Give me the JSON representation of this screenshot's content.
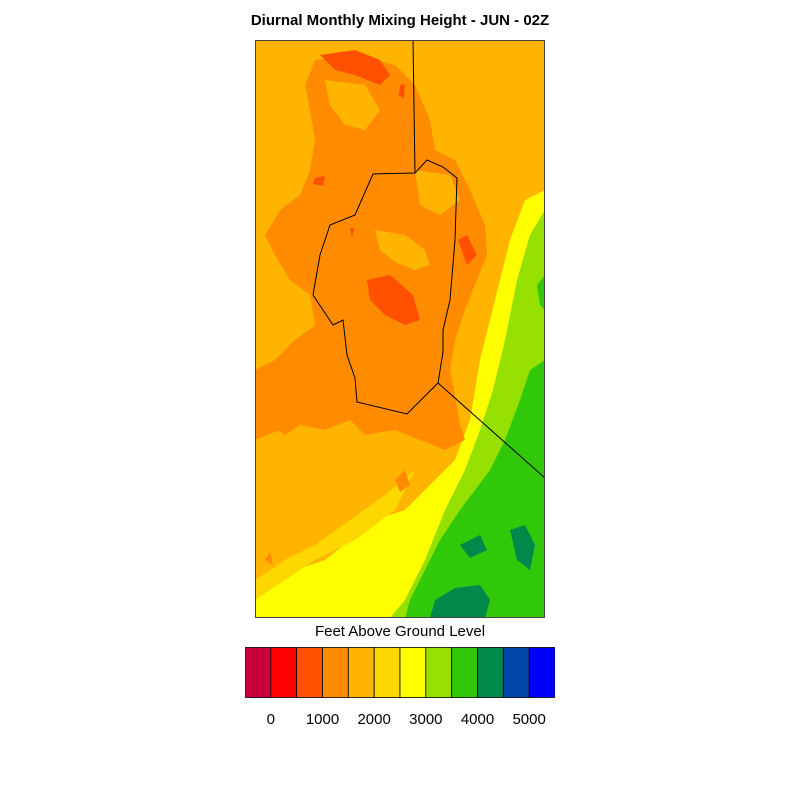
{
  "title": "Diurnal Monthly Mixing Height - JUN - 02Z",
  "legend": {
    "label": "Feet Above Ground Level",
    "colors": [
      "#c8003c",
      "#ff0000",
      "#ff5000",
      "#ff8c00",
      "#ffb400",
      "#ffd700",
      "#ffff00",
      "#96e000",
      "#32c80a",
      "#00894a",
      "#0046a8",
      "#0000ff"
    ],
    "tick_labels": [
      "0",
      "1000",
      "2000",
      "3000",
      "4000",
      "5000"
    ]
  },
  "map": {
    "subject": "contoured mixing height field over region with boundary outlines"
  }
}
